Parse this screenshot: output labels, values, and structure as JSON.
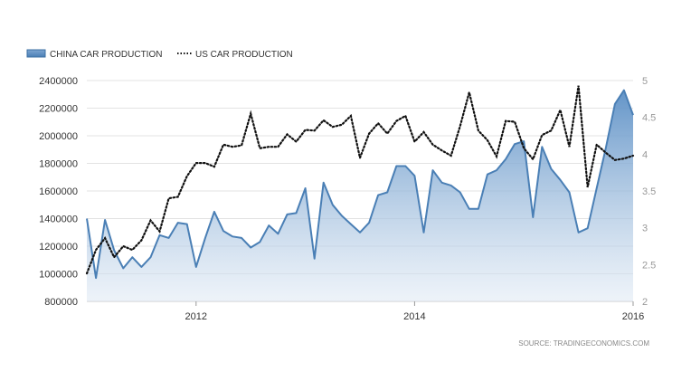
{
  "chart_data": {
    "type": "line",
    "source": "SOURCE: TRADINGECONOMICS.COM",
    "legend": {
      "placement": "top-left"
    },
    "grid": {
      "horizontal": true,
      "vertical": false
    },
    "x_ticks": [
      "2012",
      "2014",
      "2016"
    ],
    "y_left": {
      "ylim": [
        800000,
        2400000
      ],
      "ticks": [
        "800000",
        "1000000",
        "1200000",
        "1400000",
        "1600000",
        "1800000",
        "2000000",
        "2200000",
        "2400000"
      ]
    },
    "y_right": {
      "ylim": [
        2,
        5
      ],
      "ticks": [
        "2",
        "2.5",
        "3",
        "3.5",
        "4",
        "4.5",
        "5"
      ]
    },
    "x_start": "2011-01",
    "x_end": "2016-01",
    "series": [
      {
        "name": "CHINA CAR PRODUCTION",
        "axis": "left",
        "style": "area",
        "color": "#4a7fb5",
        "x": [
          "2011-01",
          "2011-02",
          "2011-03",
          "2011-04",
          "2011-05",
          "2011-06",
          "2011-07",
          "2011-08",
          "2011-09",
          "2011-10",
          "2011-11",
          "2011-12",
          "2012-01",
          "2012-02",
          "2012-03",
          "2012-04",
          "2012-05",
          "2012-06",
          "2012-07",
          "2012-08",
          "2012-09",
          "2012-10",
          "2012-11",
          "2012-12",
          "2013-01",
          "2013-02",
          "2013-03",
          "2013-04",
          "2013-05",
          "2013-06",
          "2013-07",
          "2013-08",
          "2013-09",
          "2013-10",
          "2013-11",
          "2013-12",
          "2014-01",
          "2014-02",
          "2014-03",
          "2014-04",
          "2014-05",
          "2014-06",
          "2014-07",
          "2014-08",
          "2014-09",
          "2014-10",
          "2014-11",
          "2014-12",
          "2015-01",
          "2015-02",
          "2015-03",
          "2015-04",
          "2015-05",
          "2015-06",
          "2015-07",
          "2015-08",
          "2015-09",
          "2015-10",
          "2015-11",
          "2015-12",
          "2016-01"
        ],
        "values": [
          1400000,
          970000,
          1390000,
          1170000,
          1040000,
          1120000,
          1050000,
          1120000,
          1280000,
          1260000,
          1370000,
          1360000,
          1050000,
          1260000,
          1450000,
          1310000,
          1270000,
          1260000,
          1190000,
          1230000,
          1350000,
          1290000,
          1430000,
          1440000,
          1620000,
          1110000,
          1660000,
          1500000,
          1420000,
          1360000,
          1300000,
          1370000,
          1570000,
          1590000,
          1780000,
          1780000,
          1710000,
          1300000,
          1750000,
          1660000,
          1640000,
          1590000,
          1470000,
          1470000,
          1720000,
          1750000,
          1830000,
          1940000,
          1960000,
          1410000,
          1920000,
          1760000,
          1680000,
          1590000,
          1300000,
          1330000,
          1620000,
          1910000,
          2230000,
          2330000,
          2150000
        ]
      },
      {
        "name": "US CAR PRODUCTION",
        "axis": "right",
        "style": "dotted-line",
        "color": "#111111",
        "x": [
          "2011-01",
          "2011-02",
          "2011-03",
          "2011-04",
          "2011-05",
          "2011-06",
          "2011-07",
          "2011-08",
          "2011-09",
          "2011-10",
          "2011-11",
          "2011-12",
          "2012-01",
          "2012-02",
          "2012-03",
          "2012-04",
          "2012-05",
          "2012-06",
          "2012-07",
          "2012-08",
          "2012-09",
          "2012-10",
          "2012-11",
          "2012-12",
          "2013-01",
          "2013-02",
          "2013-03",
          "2013-04",
          "2013-05",
          "2013-06",
          "2013-07",
          "2013-08",
          "2013-09",
          "2013-10",
          "2013-11",
          "2013-12",
          "2014-01",
          "2014-02",
          "2014-03",
          "2014-04",
          "2014-05",
          "2014-06",
          "2014-07",
          "2014-08",
          "2014-09",
          "2014-10",
          "2014-11",
          "2014-12",
          "2015-01",
          "2015-02",
          "2015-03",
          "2015-04",
          "2015-05",
          "2015-06",
          "2015-07",
          "2015-08",
          "2015-09",
          "2015-10",
          "2015-11",
          "2015-12",
          "2016-01"
        ],
        "values": [
          2.38,
          2.7,
          2.86,
          2.6,
          2.75,
          2.7,
          2.83,
          3.1,
          2.95,
          3.4,
          3.42,
          3.7,
          3.88,
          3.88,
          3.83,
          4.13,
          4.1,
          4.12,
          4.55,
          4.08,
          4.1,
          4.1,
          4.27,
          4.17,
          4.33,
          4.32,
          4.46,
          4.37,
          4.4,
          4.52,
          3.95,
          4.28,
          4.42,
          4.28,
          4.45,
          4.52,
          4.17,
          4.3,
          4.13,
          4.05,
          3.98,
          4.38,
          4.84,
          4.32,
          4.19,
          3.97,
          4.45,
          4.44,
          4.08,
          3.93,
          4.26,
          4.32,
          4.6,
          4.1,
          4.93,
          3.55,
          4.13,
          4.02,
          3.92,
          3.94,
          3.98
        ]
      }
    ]
  }
}
